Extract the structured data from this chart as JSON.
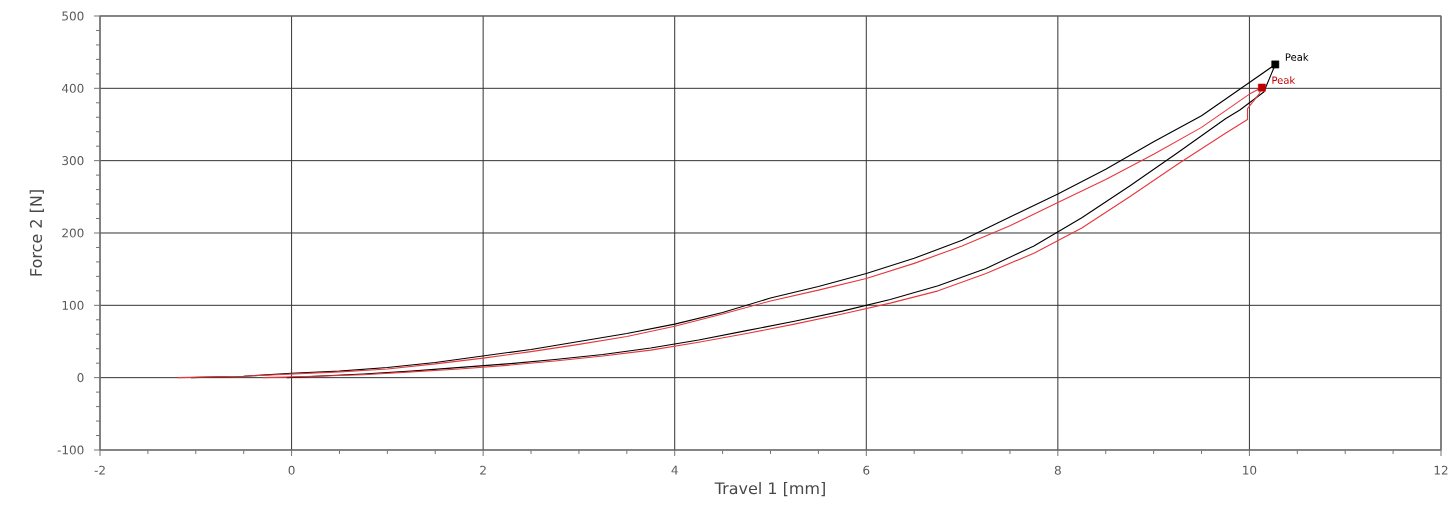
{
  "chart_data": {
    "type": "line",
    "xlabel": "Travel 1 [mm]",
    "ylabel": "Force 2 [N]",
    "xlim": [
      -2,
      12
    ],
    "ylim": [
      -100,
      500
    ],
    "xticks": [
      -2,
      0,
      2,
      4,
      6,
      8,
      10,
      12
    ],
    "yticks": [
      -100,
      0,
      100,
      200,
      300,
      400,
      500
    ],
    "grid": true,
    "line_style": "solid",
    "series": [
      {
        "color": "#000000",
        "x": [
          -1.05,
          -0.5,
          0,
          0.5,
          1,
          1.5,
          2,
          2.5,
          3,
          3.5,
          4,
          4.5,
          5,
          5.5,
          6,
          6.5,
          7,
          7.5,
          8,
          8.5,
          9,
          9.5,
          10,
          10.27,
          10.15,
          9.9,
          9.75,
          9.25,
          8.75,
          8.25,
          7.75,
          7.25,
          6.75,
          6.25,
          5.75,
          5.25,
          4.75,
          4.25,
          3.75,
          3.25,
          2.75,
          2.25,
          1.75,
          1.25,
          0.75,
          0.25,
          -0.05
        ],
        "values": [
          0,
          2,
          6,
          9,
          14,
          21,
          30,
          39,
          50,
          61,
          74,
          90,
          110,
          126,
          144,
          165,
          190,
          222,
          254,
          288,
          326,
          362,
          408,
          433,
          395,
          370,
          358,
          311,
          265,
          221,
          182,
          151,
          127,
          108,
          92,
          78,
          65,
          52,
          41,
          32,
          25,
          19,
          14,
          9,
          5,
          2,
          0
        ]
      },
      {
        "color": "#e8383d",
        "x": [
          -1.19,
          -0.5,
          0,
          0.5,
          1,
          1.5,
          2,
          2.5,
          3,
          3.5,
          4,
          4.5,
          5,
          5.5,
          6,
          6.5,
          7,
          7.5,
          8,
          8.5,
          9,
          9.5,
          10,
          10.13,
          10.1,
          9.98,
          9.98,
          9.75,
          9.25,
          8.75,
          8.25,
          7.75,
          7.25,
          6.75,
          6.25,
          5.75,
          5.25,
          4.75,
          4.25,
          3.75,
          3.25,
          2.75,
          2.25,
          1.75,
          1.25,
          0.75,
          0.25,
          -0.3
        ],
        "values": [
          0,
          2,
          5,
          8,
          12,
          19,
          27,
          36,
          46,
          57,
          71,
          88,
          106,
          121,
          137,
          158,
          182,
          210,
          242,
          274,
          309,
          346,
          392,
          401,
          392,
          372,
          357,
          338,
          295,
          250,
          207,
          172,
          144,
          120,
          103,
          88,
          74,
          61,
          49,
          38,
          30,
          23,
          17,
          12,
          8,
          4,
          2,
          0
        ]
      },
      {
        "type": "scatter",
        "marker": "square",
        "x": [
          10.27,
          10.13
        ],
        "values": [
          433,
          401
        ],
        "colors": [
          "#000000",
          "#c00000"
        ]
      }
    ],
    "annotations": [
      {
        "text": "Peak",
        "x": 10.27,
        "y": 433
      },
      {
        "text": "Peak",
        "x": 10.13,
        "y": 401
      }
    ]
  }
}
